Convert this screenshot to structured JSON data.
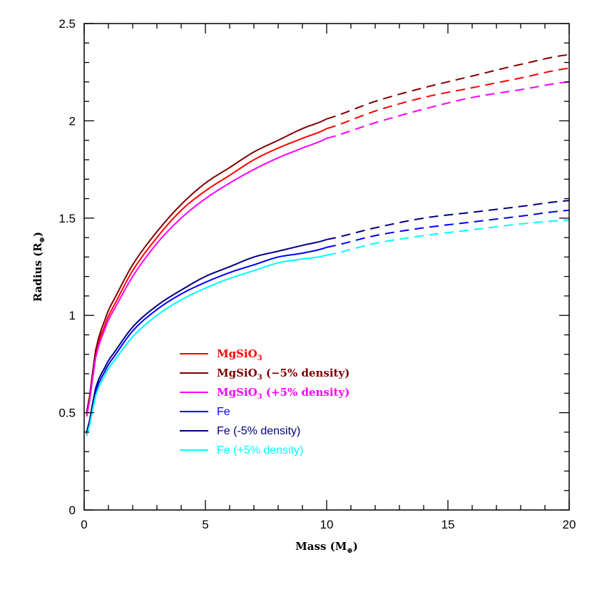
{
  "chart_data": {
    "type": "line",
    "title": "",
    "xlabel": "Mass (M",
    "xlabel_sub": "⊕",
    "xlabel_end": ")",
    "ylabel": "Radius (R",
    "ylabel_sub": "⊕",
    "ylabel_end": ")",
    "xlim": [
      0,
      20
    ],
    "ylim": [
      0,
      2.5
    ],
    "x_ticks": [
      0,
      5,
      10,
      15,
      20
    ],
    "x_tick_labels": [
      "0",
      "5",
      "10",
      "15",
      "20"
    ],
    "y_ticks": [
      0,
      0.5,
      1,
      1.5,
      2,
      2.5
    ],
    "y_tick_labels": [
      "0",
      "0.5",
      "1",
      "1.5",
      "2",
      "2.5"
    ],
    "grid": false,
    "legend_position": "lower-left",
    "dashed_from_x": 10,
    "series": [
      {
        "name": "MgSiO3",
        "name_main": "MgSiO",
        "name_sub": "3",
        "name_rest": "",
        "label_style": "serif",
        "color": "#ff0000",
        "x": [
          0.1,
          0.5,
          1,
          2,
          3,
          4,
          5,
          6,
          7,
          8,
          9,
          10,
          12,
          14,
          16,
          18,
          20
        ],
        "y": [
          0.49,
          0.82,
          1.0,
          1.23,
          1.4,
          1.54,
          1.64,
          1.72,
          1.8,
          1.86,
          1.91,
          1.96,
          2.05,
          2.12,
          2.17,
          2.22,
          2.27
        ]
      },
      {
        "name": "MgSiO3 (-5% density)",
        "name_main": "MgSiO",
        "name_sub": "3",
        "name_rest": " (−5% density)",
        "label_style": "serif",
        "color": "#7f0000",
        "x": [
          0.1,
          0.5,
          1,
          2,
          3,
          4,
          5,
          6,
          7,
          8,
          9,
          10,
          12,
          14,
          16,
          18,
          20
        ],
        "y": [
          0.5,
          0.84,
          1.03,
          1.26,
          1.43,
          1.57,
          1.68,
          1.76,
          1.84,
          1.9,
          1.96,
          2.01,
          2.1,
          2.17,
          2.23,
          2.29,
          2.34
        ]
      },
      {
        "name": "MgSiO3 (+5% density)",
        "name_main": "MgSiO",
        "name_sub": "3",
        "name_rest": " (+5% density)",
        "label_style": "serif",
        "color": "#ff00ff",
        "x": [
          0.1,
          0.5,
          1,
          2,
          3,
          4,
          5,
          6,
          7,
          8,
          9,
          10,
          12,
          14,
          16,
          18,
          20
        ],
        "y": [
          0.48,
          0.8,
          0.98,
          1.2,
          1.37,
          1.5,
          1.6,
          1.68,
          1.75,
          1.81,
          1.86,
          1.91,
          1.99,
          2.06,
          2.12,
          2.16,
          2.2
        ]
      },
      {
        "name": "Fe",
        "name_main": "Fe",
        "name_sub": "",
        "name_rest": "",
        "label_style": "sans",
        "color": "#0000ff",
        "x": [
          0.1,
          0.5,
          1,
          2,
          3,
          4,
          5,
          6,
          7,
          8,
          9,
          10,
          12,
          14,
          16,
          18,
          20
        ],
        "y": [
          0.39,
          0.62,
          0.75,
          0.92,
          1.03,
          1.11,
          1.17,
          1.22,
          1.26,
          1.3,
          1.32,
          1.35,
          1.41,
          1.45,
          1.48,
          1.51,
          1.54
        ]
      },
      {
        "name": "Fe (-5% density)",
        "name_main": "Fe (-5% density)",
        "name_sub": "",
        "name_rest": "",
        "label_style": "sans",
        "color": "#00007f",
        "x": [
          0.1,
          0.5,
          1,
          2,
          3,
          4,
          5,
          6,
          7,
          8,
          9,
          10,
          12,
          14,
          16,
          18,
          20
        ],
        "y": [
          0.4,
          0.64,
          0.77,
          0.94,
          1.05,
          1.13,
          1.2,
          1.25,
          1.3,
          1.33,
          1.36,
          1.39,
          1.45,
          1.5,
          1.53,
          1.56,
          1.59
        ]
      },
      {
        "name": "Fe (+5% density)",
        "name_main": "Fe (+5% density)",
        "name_sub": "",
        "name_rest": "",
        "label_style": "sans",
        "color": "#00ffff",
        "x": [
          0.1,
          0.5,
          1,
          2,
          3,
          4,
          5,
          6,
          7,
          8,
          9,
          10,
          12,
          14,
          16,
          18,
          20
        ],
        "y": [
          0.38,
          0.6,
          0.73,
          0.89,
          1.0,
          1.08,
          1.14,
          1.19,
          1.23,
          1.27,
          1.29,
          1.31,
          1.37,
          1.41,
          1.44,
          1.47,
          1.49
        ]
      }
    ]
  }
}
